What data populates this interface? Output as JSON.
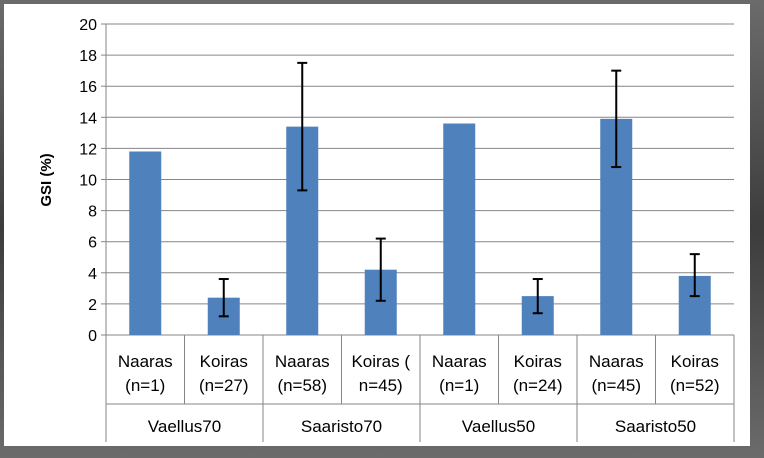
{
  "chart_data": {
    "type": "bar",
    "ylabel": "GSI (%)",
    "xlabel": "",
    "ylim": [
      0,
      20
    ],
    "y_ticks": [
      "0",
      "2",
      "4",
      "6",
      "8",
      "10",
      "12",
      "14",
      "16",
      "18",
      "20"
    ],
    "grid": "horizontal",
    "legend": "none",
    "bar_color": "#4F81BD",
    "error_bar_color": "#000000",
    "categories": [
      {
        "line1": "Naaras",
        "line2": "(n=1)"
      },
      {
        "line1": "Koiras",
        "line2": "(n=27)"
      },
      {
        "line1": "Naaras",
        "line2": "(n=58)"
      },
      {
        "line1": "Koiras (",
        "line2": "n=45)"
      },
      {
        "line1": "Naaras",
        "line2": "(n=1)"
      },
      {
        "line1": "Koiras",
        "line2": "(n=24)"
      },
      {
        "line1": "Naaras",
        "line2": "(n=45)"
      },
      {
        "line1": "Koiras",
        "line2": "(n=52)"
      }
    ],
    "groups": [
      "Vaellus70",
      "Saaristo70",
      "Vaellus50",
      "Saaristo50"
    ],
    "values": [
      11.8,
      2.4,
      13.4,
      4.2,
      13.6,
      2.5,
      13.9,
      3.8
    ],
    "error_low": [
      null,
      1.2,
      9.3,
      2.2,
      null,
      1.4,
      10.8,
      2.5
    ],
    "error_high": [
      null,
      3.6,
      17.5,
      6.2,
      null,
      3.6,
      17.0,
      5.2
    ]
  }
}
